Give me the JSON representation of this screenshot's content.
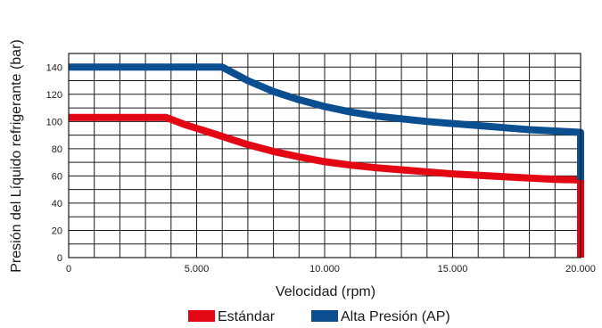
{
  "chart_data": {
    "type": "line",
    "title": "",
    "xlabel": "Velocidad (rpm)",
    "ylabel": "Presión del Líquido refrigerante (bar)",
    "xlim": [
      0,
      20000
    ],
    "ylim": [
      0,
      150
    ],
    "x_ticks": [
      0,
      5000,
      10000,
      15000,
      20000
    ],
    "x_tick_labels": [
      "0",
      "5.000",
      "10.000",
      "15.000",
      "20.000"
    ],
    "y_ticks": [
      0,
      20,
      40,
      60,
      80,
      100,
      120,
      140
    ],
    "y_tick_labels": [
      "0",
      "20",
      "40",
      "60",
      "80",
      "100",
      "120",
      "140"
    ],
    "x_grid_step": 1000,
    "y_grid_step": 10,
    "grid": true,
    "legend_position": "bottom",
    "series": [
      {
        "name": "Estándar",
        "color": "#e30613",
        "x": [
          0,
          3800,
          4500,
          5000,
          5500,
          6000,
          7000,
          8000,
          9000,
          10000,
          11000,
          12000,
          13000,
          14000,
          15000,
          16000,
          17000,
          18000,
          19000,
          20000,
          20000
        ],
        "y": [
          103,
          103,
          98,
          95,
          92,
          89,
          83,
          78,
          74,
          70.5,
          68,
          66,
          64.5,
          63,
          61.5,
          60.5,
          59.5,
          58.5,
          57.5,
          57,
          0
        ]
      },
      {
        "name": "Alta Presión (AP)",
        "color": "#0b4f91",
        "x": [
          0,
          6000,
          6500,
          7000,
          8000,
          9000,
          10000,
          11000,
          12000,
          13000,
          14000,
          15000,
          16000,
          17000,
          18000,
          19000,
          20000,
          20000
        ],
        "y": [
          140,
          140,
          135,
          130,
          122,
          116,
          111,
          107,
          104,
          102,
          100,
          98.5,
          97,
          95.5,
          94,
          93,
          92,
          57
        ]
      }
    ]
  }
}
